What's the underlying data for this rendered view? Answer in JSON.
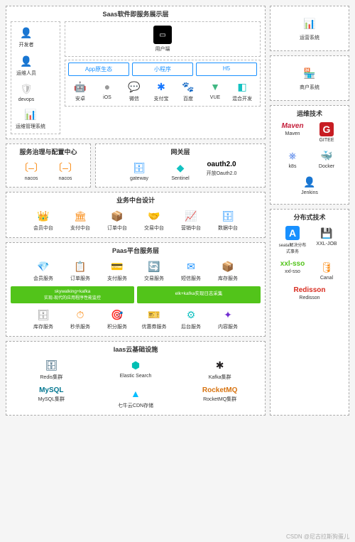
{
  "colors": {
    "border": "#aaaaaa",
    "blue": "#1890ff",
    "green": "#52c41a",
    "orange": "#fa8c16",
    "red": "#f5222d",
    "gold": "#faad14",
    "teal": "#13c2c2",
    "purple": "#722ed1",
    "gray": "#8c8c8c"
  },
  "saas": {
    "title": "Saas软件即服务展示层",
    "left": [
      {
        "n": "开发者",
        "i": "👤",
        "c": "#fa8c16"
      },
      {
        "n": "运维人员",
        "i": "👤",
        "c": "#fa8c16"
      },
      {
        "n": "devops",
        "i": "🛡",
        "c": "#bfbfbf"
      },
      {
        "n": "运维管理系统",
        "i": "📊",
        "c": "#fa8c16"
      }
    ],
    "client": {
      "n": "用户端",
      "i": "▭",
      "c": "#000"
    },
    "tabs": [
      "App原生态",
      "小程序",
      "H5"
    ],
    "platforms": [
      {
        "n": "安卓",
        "i": "🤖",
        "c": "#a4c639"
      },
      {
        "n": "iOS",
        "i": "",
        "c": "#999"
      },
      {
        "n": "微信",
        "i": "💬",
        "c": "#07c160"
      },
      {
        "n": "支付宝",
        "i": "✱",
        "c": "#1677ff"
      },
      {
        "n": "百度",
        "i": "🐾",
        "c": "#2932e1"
      },
      {
        "n": "VUE",
        "i": "▼",
        "c": "#41b883"
      },
      {
        "n": "混合开发",
        "i": "◧",
        "c": "#13c2c2"
      }
    ]
  },
  "ops_sys": {
    "n": "运营系统",
    "i": "📊",
    "c": "#1890ff"
  },
  "merchant_sys": {
    "n": "商户系统",
    "i": "🏪",
    "c": "#fa8c16"
  },
  "gov": {
    "title": "服务治理与配置中心",
    "items": [
      {
        "n": "nacos",
        "i": "〔–〕",
        "c": "#fa8c16"
      },
      {
        "n": "nacos",
        "i": "〔–〕",
        "c": "#fa8c16"
      }
    ]
  },
  "gateway": {
    "title": "网关层",
    "items": [
      {
        "n": "gateway",
        "i": "🗄",
        "c": "#1890ff"
      },
      {
        "n": "Sentinel",
        "i": "◆",
        "c": "#13c2c2"
      },
      {
        "n": "开放Oauth2.0",
        "t": "oauth2.0",
        "c": "#000"
      }
    ]
  },
  "devops": {
    "title": "运维技术",
    "rows": [
      [
        {
          "n": "Maven",
          "t": "Maven",
          "c": "#c41e3a",
          "it": true
        },
        {
          "n": "GITEE",
          "i": "G",
          "c": "#c71d23",
          "box": true
        }
      ],
      [
        {
          "n": "k8s",
          "i": "⎈",
          "c": "#326ce5"
        },
        {
          "n": "Docker",
          "i": "🐳",
          "c": "#2496ed"
        }
      ],
      [
        {
          "n": "Jenkins",
          "i": "👤",
          "c": "#d24939"
        }
      ]
    ]
  },
  "biz": {
    "title": "业务中台设计",
    "items": [
      {
        "n": "会员中台",
        "i": "👑",
        "c": "#faad14"
      },
      {
        "n": "支付中台",
        "i": "🏛",
        "c": "#fa8c16"
      },
      {
        "n": "订单中台",
        "i": "📦",
        "c": "#8c8c8c"
      },
      {
        "n": "交易中台",
        "i": "🤝",
        "c": "#faad14"
      },
      {
        "n": "营销中台",
        "i": "📈",
        "c": "#f5222d"
      },
      {
        "n": "数据中台",
        "i": "🗄",
        "c": "#1890ff"
      }
    ]
  },
  "paas": {
    "title": "Paas平台服务层",
    "r1": [
      {
        "n": "会员服务",
        "i": "💎",
        "c": "#13c2c2"
      },
      {
        "n": "订单服务",
        "i": "📋",
        "c": "#52c41a"
      },
      {
        "n": "支付服务",
        "i": "💳",
        "c": "#1890ff"
      },
      {
        "n": "交易服务",
        "i": "🔄",
        "c": "#f5222d"
      },
      {
        "n": "短信服务",
        "i": "✉",
        "c": "#1890ff"
      },
      {
        "n": "库存服务",
        "i": "📦",
        "c": "#faad14"
      }
    ],
    "g1": {
      "t": "skywalking+kafka",
      "s": "实现-现代的应用程序性能监控"
    },
    "g2": {
      "t": "elk+kafka实现日志采集"
    },
    "r2": [
      {
        "n": "库存服务",
        "i": "🗄",
        "c": "#8c8c8c"
      },
      {
        "n": "秒杀服务",
        "i": "⏱",
        "c": "#fa8c16"
      },
      {
        "n": "积分服务",
        "i": "🎯",
        "c": "#1890ff"
      },
      {
        "n": "优惠券服务",
        "i": "🎫",
        "c": "#f5222d"
      },
      {
        "n": "后台服务",
        "i": "⚙",
        "c": "#13c2c2"
      },
      {
        "n": "内容服务",
        "i": "✦",
        "c": "#722ed1"
      }
    ]
  },
  "dist": {
    "title": "分布式技术",
    "rows": [
      [
        {
          "n": "seata解决分布式事务",
          "i": "A",
          "c": "#1890ff",
          "box": true,
          "small": true
        },
        {
          "n": "XXL-JOB",
          "i": "💾",
          "c": "#52c41a"
        }
      ],
      [
        {
          "n": "xxl-sso",
          "t": "xxl-sso",
          "c": "#52c41a"
        },
        {
          "n": "Canal",
          "i": "🛢",
          "c": "#fa8c16"
        }
      ],
      [
        {
          "n": "Redisson",
          "t": "Redisson",
          "c": "#d82c20"
        }
      ]
    ]
  },
  "iaas": {
    "title": "Iaas云基础设施",
    "rows": [
      [
        {
          "n": "Redis集群",
          "i": "🗄",
          "c": "#0b3d5b"
        },
        {
          "n": "Elastic Search",
          "i": "⬢",
          "c": "#00bfb3"
        },
        {
          "n": "Kafka集群",
          "i": "✱",
          "c": "#231f20"
        }
      ],
      [
        {
          "n": "MySQL集群",
          "t": "MySQL",
          "c": "#00758f"
        },
        {
          "n": "七牛云CDN存储",
          "i": "▲",
          "c": "#07beff"
        },
        {
          "n": "RocketMQ集群",
          "t": "RocketMQ",
          "c": "#d77310"
        }
      ]
    ]
  },
  "footer": "CSDN @尼古拉斯狗蛋儿"
}
